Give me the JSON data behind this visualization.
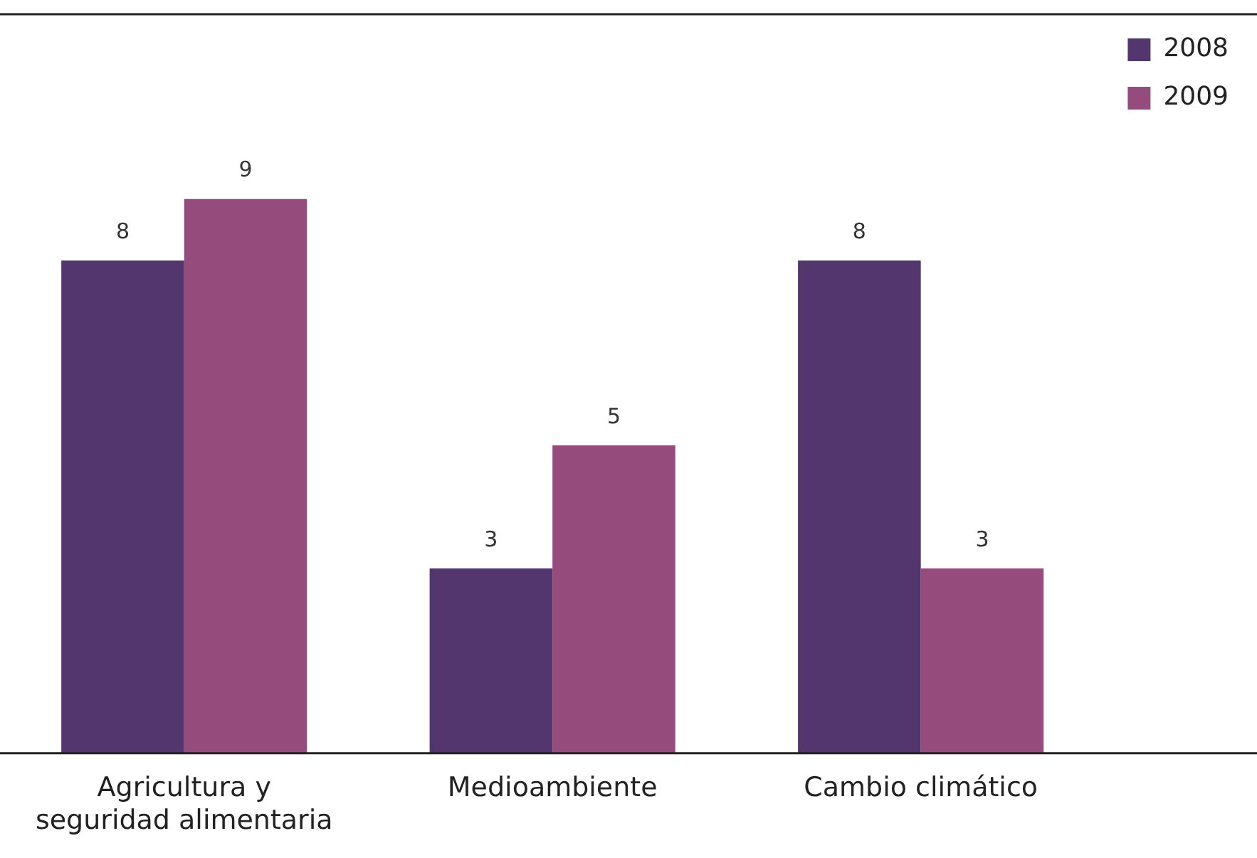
{
  "chart_data": {
    "type": "bar",
    "categories": [
      "Agricultura y seguridad alimentaria",
      "Medioambiente",
      "Cambio climático"
    ],
    "series": [
      {
        "name": "2008",
        "color": "#52366d",
        "values": [
          8,
          3,
          8
        ]
      },
      {
        "name": "2009",
        "color": "#954b7c",
        "values": [
          9,
          5,
          3
        ]
      }
    ],
    "data_labels": true,
    "legend": "top right",
    "grid": false
  }
}
